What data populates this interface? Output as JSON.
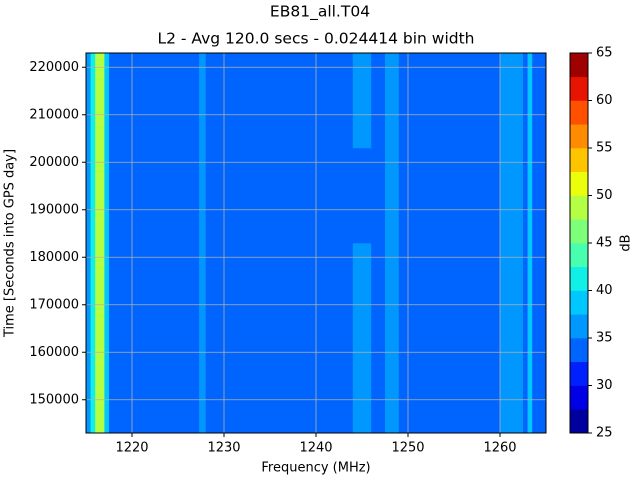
{
  "chart_data": {
    "type": "heatmap",
    "title": "EB81_all.T04",
    "subtitle": "L2 - Avg 120.0 secs - 0.024414 bin width",
    "x_label": "Frequency (MHz)",
    "y_label": "Time [Seconds into GPS day]",
    "xlim": [
      1215,
      1265
    ],
    "ylim": [
      143000,
      223000
    ],
    "xticks": [
      1220,
      1230,
      1240,
      1250,
      1260
    ],
    "yticks": [
      150000,
      160000,
      170000,
      180000,
      190000,
      200000,
      210000,
      220000
    ],
    "grid": true,
    "x_edges": [
      1215,
      1215.5,
      1216,
      1217,
      1217.5,
      1227.3,
      1228,
      1244,
      1246,
      1247.5,
      1249,
      1260,
      1262.5,
      1263,
      1263.5,
      1265
    ],
    "y_edges": [
      143000,
      163000,
      183000,
      203000,
      223000
    ],
    "z": [
      [
        36,
        41,
        48,
        39,
        34,
        36,
        34,
        35,
        34,
        36,
        34,
        36,
        34,
        38,
        34
      ],
      [
        36,
        41,
        48,
        39,
        34,
        36,
        34,
        36,
        34,
        36,
        34,
        36,
        34,
        38,
        34
      ],
      [
        36,
        41,
        48,
        39,
        34,
        36,
        34,
        34,
        34,
        36,
        34,
        36,
        34,
        38,
        34
      ],
      [
        36,
        41,
        48,
        39,
        34,
        36,
        34,
        36,
        34,
        36,
        34,
        36,
        34,
        38,
        34
      ]
    ],
    "colorbar": {
      "label": "dB",
      "levels": [
        25,
        27.5,
        30,
        32.5,
        35,
        37.5,
        40,
        42.5,
        45,
        47.5,
        50,
        52.5,
        55,
        57.5,
        60,
        62.5,
        65
      ],
      "colors": [
        "#00009f",
        "#0000e6",
        "#0020ff",
        "#0064ff",
        "#0098ff",
        "#00c8ff",
        "#10f0e6",
        "#47ffaf",
        "#7dff7a",
        "#b4ff43",
        "#ebff0c",
        "#ffc400",
        "#ff8c00",
        "#ff5000",
        "#e61400",
        "#9f0000"
      ],
      "ticks": [
        25,
        30,
        35,
        40,
        45,
        50,
        55,
        60,
        65
      ]
    }
  }
}
